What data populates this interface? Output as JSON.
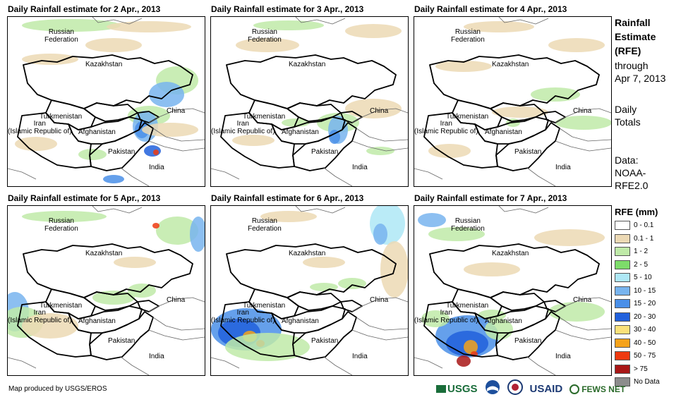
{
  "panels": [
    {
      "title": "Daily Rainfall estimate for 2 Apr., 2013",
      "rain": "p1"
    },
    {
      "title": "Daily Rainfall estimate for 3 Apr., 2013",
      "rain": "p2"
    },
    {
      "title": "Daily Rainfall estimate for 4 Apr., 2013",
      "rain": "p3"
    },
    {
      "title": "Daily Rainfall estimate for 5 Apr., 2013",
      "rain": "p4"
    },
    {
      "title": "Daily Rainfall estimate for 6 Apr., 2013",
      "rain": "p5"
    },
    {
      "title": "Daily Rainfall estimate for 7 Apr., 2013",
      "rain": "p6"
    }
  ],
  "countries": {
    "russia": "Russian\nFederation",
    "kazakhstan": "Kazakhstan",
    "turkmenistan": "Turkmenistan",
    "iran": "Iran\n(Islamic Republic of)",
    "afghanistan": "Afghanistan",
    "pakistan": "Pakistan",
    "india": "India",
    "china": "China"
  },
  "side": {
    "title": "Rainfall\nEstimate\n(RFE)",
    "through": "through\nApr 7, 2013",
    "totals": "Daily\nTotals",
    "source": "Data:\nNOAA-\nRFE2.0"
  },
  "legend": {
    "title": "RFE (mm)",
    "items": [
      {
        "label": "0 - 0.1",
        "color": "#ffffff"
      },
      {
        "label": "0.1 - 1",
        "color": "#ecd9b4"
      },
      {
        "label": "1 - 2",
        "color": "#bfeaa8"
      },
      {
        "label": "2 - 5",
        "color": "#7ddc6a"
      },
      {
        "label": "5 - 10",
        "color": "#aee8f6"
      },
      {
        "label": "10 - 15",
        "color": "#78b4ee"
      },
      {
        "label": "15 - 20",
        "color": "#4a8fe8"
      },
      {
        "label": "20 - 30",
        "color": "#2160dc"
      },
      {
        "label": "30 - 40",
        "color": "#fbe17a"
      },
      {
        "label": "40 - 50",
        "color": "#f5a21a"
      },
      {
        "label": "50 - 75",
        "color": "#ee3a10"
      },
      {
        "label": "> 75",
        "color": "#a81616"
      },
      {
        "label": "No Data",
        "color": "#8c8c8c"
      }
    ]
  },
  "footer": "Map produced by USGS/EROS",
  "logos": {
    "usgs": "USGS",
    "noaa": "NOAA",
    "usaid": "USAID",
    "fews": "FEWS NET"
  }
}
